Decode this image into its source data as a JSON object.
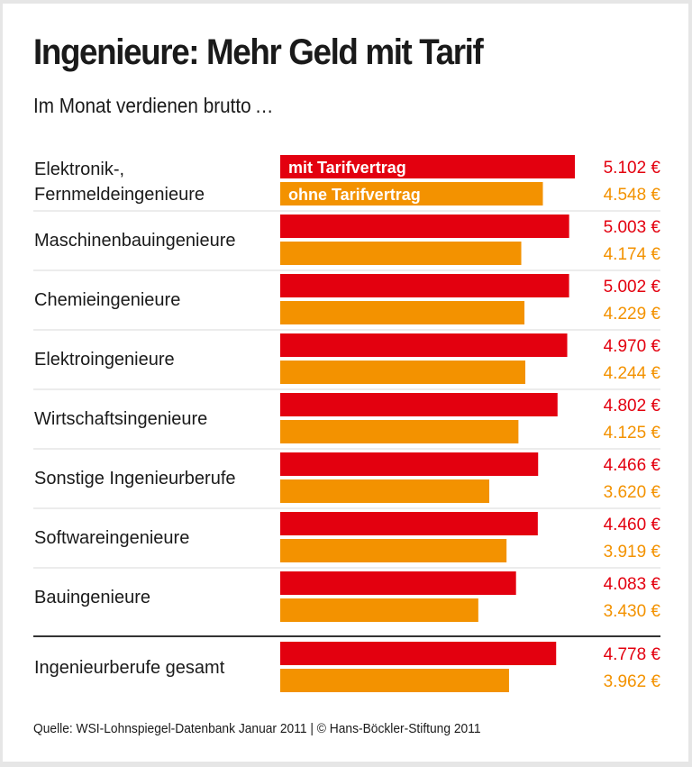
{
  "chart_data": {
    "type": "bar",
    "orientation": "horizontal",
    "title": "Ingenieure: Mehr Geld mit Tarif",
    "subtitle": "Im Monat verdienen brutto …",
    "categories": [
      [
        "Elektronik-,",
        "Fernmeldeingenieure"
      ],
      [
        "Maschinenbauingenieure"
      ],
      [
        "Chemieingenieure"
      ],
      [
        "Elektroingenieure"
      ],
      [
        "Wirtschaftsingenieure"
      ],
      [
        "Sonstige Ingenieurberufe"
      ],
      [
        "Softwareingenieure"
      ],
      [
        "Bauingenieure"
      ],
      [
        "Ingenieurberufe gesamt"
      ]
    ],
    "series": [
      {
        "name": "mit Tarifvertrag",
        "color": "#e3000f",
        "values": [
          5102,
          5003,
          5002,
          4970,
          4802,
          4466,
          4460,
          4083,
          4778
        ],
        "labels": [
          "5.102 €",
          "5.003 €",
          "5.002 €",
          "4.970 €",
          "4.802 €",
          "4.466 €",
          "4.460 €",
          "4.083 €",
          "4.778 €"
        ]
      },
      {
        "name": "ohne Tarifvertrag",
        "color": "#f39200",
        "values": [
          4548,
          4174,
          4229,
          4244,
          4125,
          3620,
          3919,
          3430,
          3962
        ],
        "labels": [
          "4.548 €",
          "4.174 €",
          "4.229 €",
          "4.244 €",
          "4.125 €",
          "3.620 €",
          "3.919 €",
          "3.430 €",
          "3.962 €"
        ]
      }
    ],
    "unit": "€",
    "xlim": [
      0,
      5200
    ],
    "legend": "inside-first-bars",
    "grid": false
  },
  "source": "Quelle: WSI-Lohnspiegel-Datenbank Januar 2011 | © Hans-Böckler-Stiftung 2011"
}
